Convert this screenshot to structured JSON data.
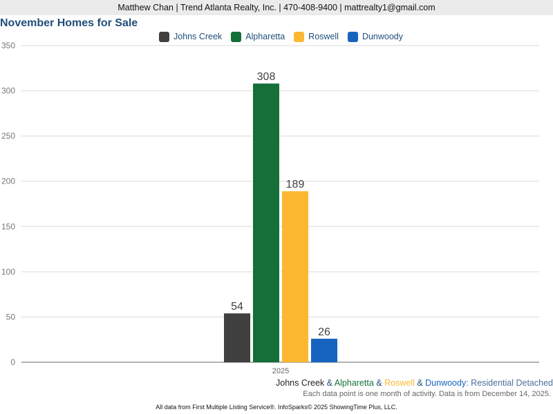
{
  "header": {
    "contact": "Matthew Chan | Trend Atlanta Realty, Inc. | 470-408-9400 | mattrealty1@gmail.com"
  },
  "chart_data": {
    "type": "bar",
    "title": "November Homes for Sale",
    "categories": [
      "2025"
    ],
    "series": [
      {
        "name": "Johns Creek",
        "color": "#404040",
        "values": [
          54
        ],
        "label": "54"
      },
      {
        "name": "Alpharetta",
        "color": "#146f38",
        "values": [
          308
        ],
        "label": "308"
      },
      {
        "name": "Roswell",
        "color": "#fbb830",
        "values": [
          189
        ],
        "label": "189"
      },
      {
        "name": "Dunwoody",
        "color": "#1764c0",
        "values": [
          26
        ],
        "label": "26"
      }
    ],
    "ylim": [
      0,
      350
    ],
    "yticks": [
      "0",
      "50",
      "100",
      "150",
      "200",
      "250",
      "300",
      "350"
    ],
    "xlabel": "",
    "ylabel": "",
    "grid": true,
    "legend": "top-center"
  },
  "footer": {
    "series_title": {
      "parts": [
        {
          "text": "Johns Creek",
          "color": "#222222"
        },
        {
          "text": " & ",
          "color": "#1f4e79"
        },
        {
          "text": "Alpharetta",
          "color": "#146f38"
        },
        {
          "text": " & ",
          "color": "#1f4e79"
        },
        {
          "text": "Roswell",
          "color": "#fbb830"
        },
        {
          "text": " & ",
          "color": "#1f4e79"
        },
        {
          "text": "Dunwoody",
          "color": "#1764c0"
        },
        {
          "text": ": Residential Detached",
          "color": "#4a6f9a"
        }
      ]
    },
    "note": "Each data point is one month of activity. Data is from December 14, 2025.",
    "credit": "All data from First Multiple Listing Service®. InfoSparks© 2025 ShowingTime Plus, LLC."
  }
}
